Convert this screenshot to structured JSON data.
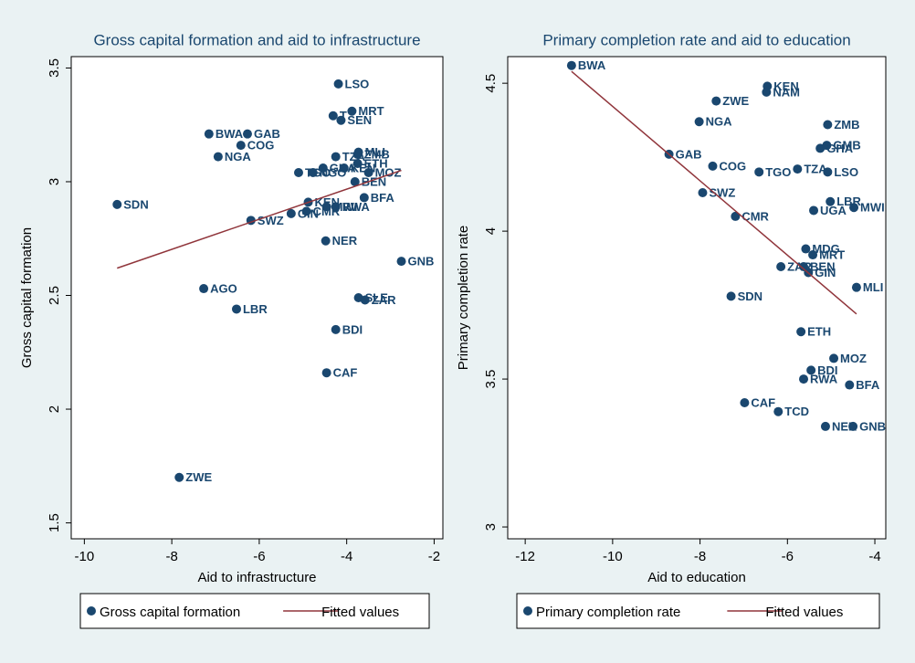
{
  "chart_data": [
    {
      "type": "scatter",
      "title": "Gross capital formation and aid to infrastructure",
      "x_label": "Aid to infrastructure",
      "y_label": "Gross capital formation",
      "xlim": [
        -10.3,
        -1.8
      ],
      "ylim": [
        1.43,
        3.55
      ],
      "xticks": [
        -10,
        -8,
        -6,
        -4,
        -2
      ],
      "yticks": [
        1.5,
        2,
        2.5,
        3,
        3.5
      ],
      "series": [
        {
          "name": "Gross capital formation",
          "color": "#1a476f",
          "type": "scatter",
          "point_labels": [
            "LSO",
            "MRT",
            "T",
            "SEN",
            "BWA",
            "GAB",
            "COG",
            "NGA",
            "MLI",
            "TZA",
            "ETH",
            "TGO",
            "NGO",
            "GHA",
            "KEN",
            "ZMB",
            "MOZ",
            "BEN",
            "SDN",
            "BFA",
            "KEN",
            "RWA",
            "MWI",
            "SWZ",
            "GIN",
            "CMR",
            "NER",
            "GNB",
            "AGO",
            "SLE",
            "ZAR",
            "LBR",
            "BDI",
            "CAF",
            "ZWE"
          ],
          "x": [
            -4.19,
            -3.88,
            -4.31,
            -4.13,
            -7.15,
            -6.27,
            -6.42,
            -6.94,
            -3.73,
            -4.25,
            -3.75,
            -5.1,
            -4.77,
            -4.54,
            -4.06,
            -3.75,
            -3.5,
            -3.81,
            -9.25,
            -3.6,
            -4.88,
            -4.25,
            -4.46,
            -6.19,
            -5.27,
            -4.92,
            -4.48,
            -2.75,
            -7.27,
            -3.73,
            -3.58,
            -6.52,
            -4.25,
            -4.46,
            -7.83
          ],
          "values": [
            3.43,
            3.31,
            3.29,
            3.27,
            3.21,
            3.21,
            3.16,
            3.11,
            3.13,
            3.11,
            3.08,
            3.04,
            3.04,
            3.06,
            3.06,
            3.12,
            3.04,
            3.0,
            2.9,
            2.93,
            2.91,
            2.89,
            2.89,
            2.83,
            2.86,
            2.87,
            2.74,
            2.65,
            2.53,
            2.49,
            2.48,
            2.44,
            2.35,
            2.16,
            1.7
          ]
        },
        {
          "name": "Fitted values",
          "color": "#90353b",
          "type": "line",
          "x": [
            -9.25,
            -2.75
          ],
          "values": [
            2.62,
            3.05
          ]
        }
      ]
    },
    {
      "type": "scatter",
      "title": "Primary completion rate and aid to education",
      "x_label": "Aid to education",
      "y_label": "Primary completion rate",
      "xlim": [
        -12.4,
        -3.75
      ],
      "ylim": [
        2.96,
        4.59
      ],
      "xticks": [
        -12,
        -10,
        -8,
        -6,
        -4
      ],
      "yticks": [
        3,
        3.5,
        4,
        4.5
      ],
      "series": [
        {
          "name": "Primary completion rate",
          "color": "#1a476f",
          "type": "scatter",
          "point_labels": [
            "BWA",
            "KEN",
            "NAM",
            "ZWE",
            "NGA",
            "ZMB",
            "GMB",
            "GHA",
            "GAB",
            "COG",
            "TGO",
            "TZA",
            "LSO",
            "SWZ",
            "LBR",
            "MWI",
            "UGA",
            "CMR",
            "MDG",
            "MRT",
            "ZAR",
            "BEN",
            "GIN",
            "MLI",
            "SDN",
            "ETH",
            "MOZ",
            "BDI",
            "RWA",
            "BFA",
            "CAF",
            "TCD",
            "NER",
            "GNB"
          ],
          "x": [
            -10.94,
            -6.46,
            -6.48,
            -7.63,
            -8.02,
            -5.08,
            -5.1,
            -5.25,
            -8.71,
            -7.71,
            -6.65,
            -5.77,
            -5.08,
            -7.94,
            -5.02,
            -4.48,
            -5.4,
            -7.19,
            -5.58,
            -5.42,
            -6.15,
            -5.63,
            -5.52,
            -4.42,
            -7.29,
            -5.69,
            -4.94,
            -5.46,
            -5.63,
            -4.58,
            -6.98,
            -6.21,
            -5.13,
            -4.5
          ],
          "values": [
            4.56,
            4.49,
            4.47,
            4.44,
            4.37,
            4.36,
            4.29,
            4.28,
            4.26,
            4.22,
            4.2,
            4.21,
            4.2,
            4.13,
            4.1,
            4.08,
            4.07,
            4.05,
            3.94,
            3.92,
            3.88,
            3.88,
            3.86,
            3.81,
            3.78,
            3.66,
            3.57,
            3.53,
            3.5,
            3.48,
            3.42,
            3.39,
            3.34,
            3.34
          ]
        },
        {
          "name": "Fitted values",
          "color": "#90353b",
          "type": "line",
          "x": [
            -10.94,
            -4.42
          ],
          "values": [
            4.54,
            3.72
          ]
        }
      ]
    }
  ]
}
